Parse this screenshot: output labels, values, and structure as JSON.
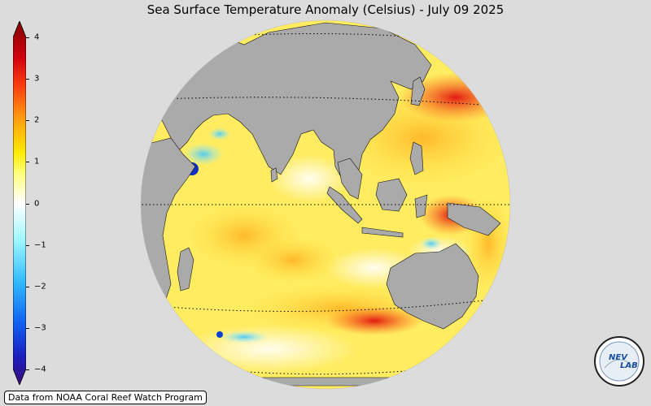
{
  "title": "Sea Surface Temperature Anomaly (Celsius) - July 09 2025",
  "colorbar": {
    "min": -4,
    "max": 4,
    "ticks": [
      "4",
      "3",
      "2",
      "1",
      "0",
      "−1",
      "−2",
      "−3",
      "−4"
    ],
    "colors": [
      "#3b0a7a",
      "#1040d8",
      "#20a0ff",
      "#80f0ff",
      "#ffffff",
      "#ffff40",
      "#ffa010",
      "#f02010",
      "#800000"
    ]
  },
  "credit": "Data from NOAA Coral Reef Watch Program",
  "logo": {
    "text_left": "NEV",
    "text_right": "LAB",
    "color": "#1a4fa0"
  },
  "map": {
    "land_color": "#aaaaaa",
    "projection": "orthographic",
    "region": "Indian Ocean and Western Pacific"
  }
}
